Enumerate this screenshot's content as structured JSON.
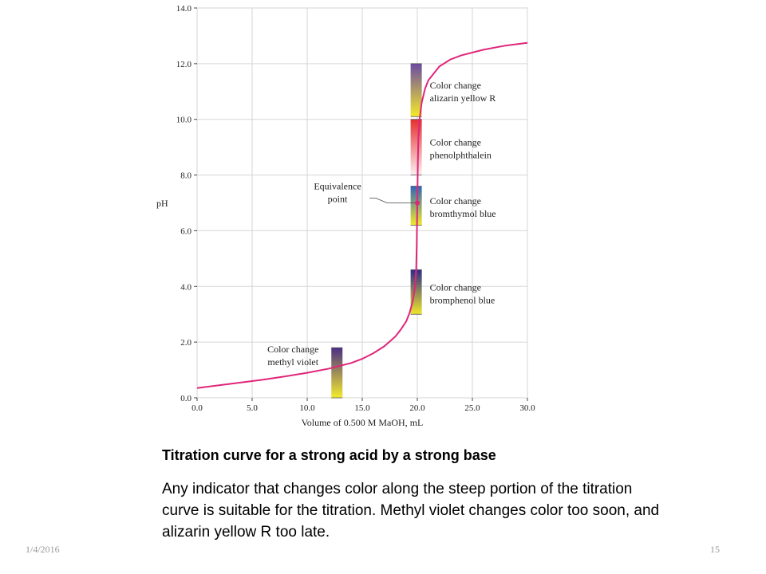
{
  "chart_data": {
    "type": "line",
    "xlabel": "Volume of 0.500 M MaOH, mL",
    "ylabel": "pH",
    "xlim": [
      0,
      30
    ],
    "ylim": [
      0,
      14
    ],
    "x_ticks": [
      "0.0",
      "5.0",
      "10.0",
      "15.0",
      "20.0",
      "25.0",
      "30.0"
    ],
    "y_ticks": [
      "0.0",
      "2.0",
      "4.0",
      "6.0",
      "8.0",
      "10.0",
      "12.0",
      "14.0"
    ],
    "grid": true,
    "curve_color": "#e0257a",
    "series": [
      {
        "x": [
          0,
          2,
          4,
          6,
          8,
          10,
          12,
          14,
          15,
          16,
          17,
          18,
          18.5,
          19,
          19.3,
          19.6,
          19.8,
          19.9,
          19.95,
          20,
          20.05,
          20.1,
          20.2,
          20.4,
          20.7,
          21,
          22,
          23,
          24,
          26,
          28,
          30
        ],
        "y": [
          0.35,
          0.45,
          0.55,
          0.65,
          0.77,
          0.9,
          1.05,
          1.25,
          1.4,
          1.6,
          1.85,
          2.2,
          2.45,
          2.75,
          3.05,
          3.5,
          4.0,
          4.6,
          5.5,
          7.0,
          8.5,
          9.4,
          10.0,
          10.6,
          11.1,
          11.4,
          11.9,
          12.15,
          12.3,
          12.5,
          12.65,
          12.75
        ]
      }
    ],
    "equivalence_point": {
      "x": 20.0,
      "y": 7.0,
      "label": "Equivalence\npoint"
    },
    "indicators": [
      {
        "label": "Color change\nmethyl violet",
        "x": 12.7,
        "y_low": 0.0,
        "y_high": 1.8,
        "color_low": "#f3ec2c",
        "color_high": "#4b2e85"
      },
      {
        "label": "Color change\nbromphenol blue",
        "x": 19.9,
        "y_low": 3.0,
        "y_high": 4.6,
        "color_low": "#f0e628",
        "color_high": "#2d2b8a"
      },
      {
        "label": "Color change\nbromthymol blue",
        "x": 19.9,
        "y_low": 6.2,
        "y_high": 7.6,
        "color_low": "#f2e82c",
        "color_high": "#2f67b8"
      },
      {
        "label": "Color change\nphenolphthalein",
        "x": 19.9,
        "y_low": 8.0,
        "y_high": 10.0,
        "color_low": "#fdf0f0",
        "color_high": "#e53030"
      },
      {
        "label": "Color change\nalizarin yellow R",
        "x": 19.9,
        "y_low": 10.1,
        "y_high": 12.0,
        "color_low": "#f4ea2a",
        "color_high": "#6b4ba3"
      }
    ]
  },
  "caption": {
    "title": "Titration curve for a strong acid by a strong base",
    "body": "Any indicator that changes color along the steep portion of the titration curve is suitable for the titration. Methyl violet changes color too soon, and alizarin yellow R too late."
  },
  "footer": {
    "date": "1/4/2016",
    "page": "15"
  }
}
